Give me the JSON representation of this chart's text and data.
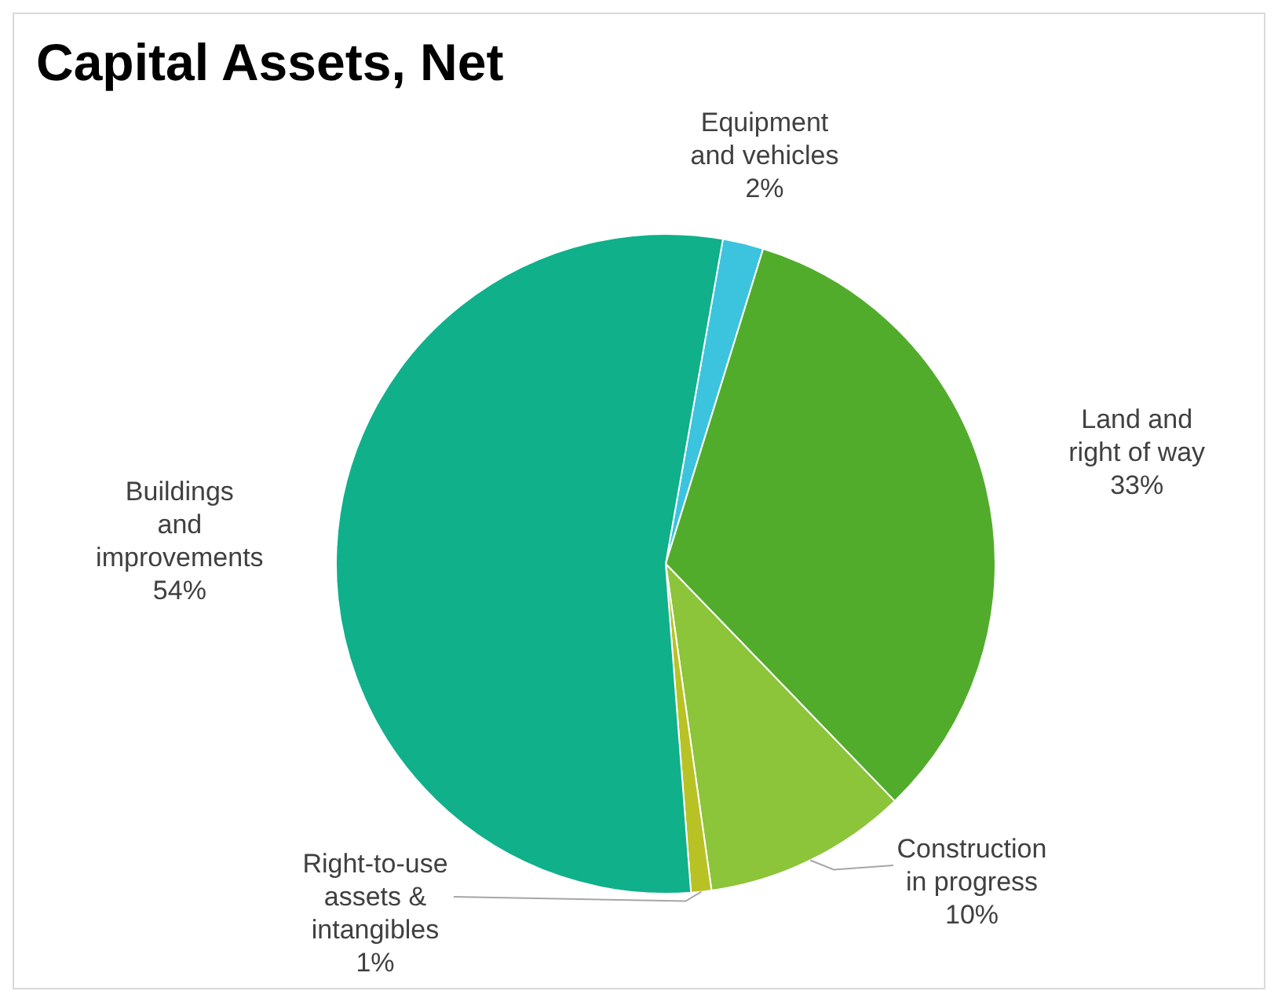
{
  "chart_data": {
    "type": "pie",
    "title": "Capital Assets, Net",
    "categories": [
      "Equipment and vehicles",
      "Land and right of way",
      "Construction in progress",
      "Right-to-use assets & intangibles",
      "Buildings and improvements"
    ],
    "values": [
      2,
      33,
      10,
      1,
      54
    ],
    "value_labels": [
      "2%",
      "33%",
      "10%",
      "1%",
      "54%"
    ],
    "colors": [
      "#3cc4de",
      "#52ac2c",
      "#8cc43a",
      "#b8c224",
      "#0fb08a"
    ],
    "legend": false
  }
}
